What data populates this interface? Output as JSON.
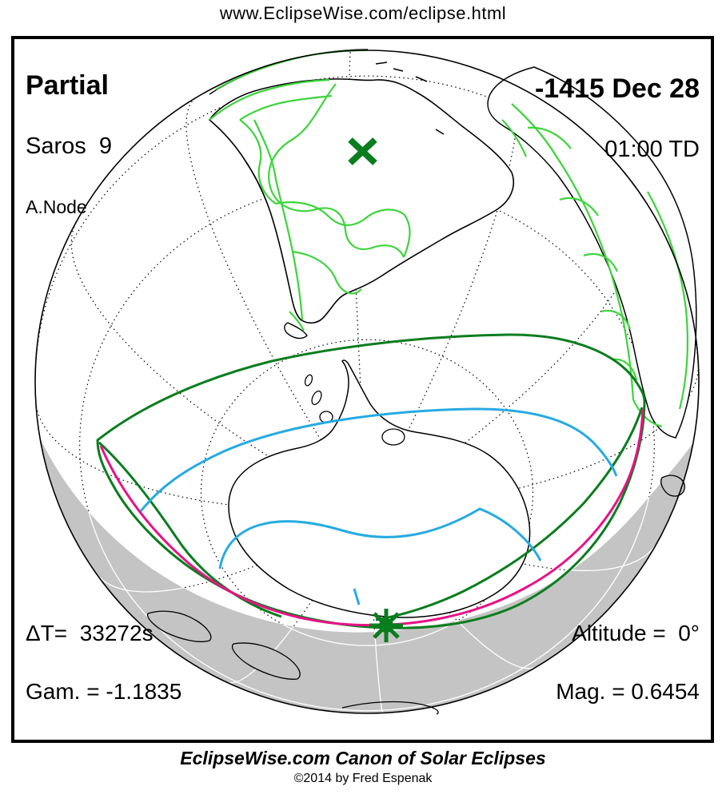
{
  "header": {
    "url": "www.EclipseWise.com/eclipse.html"
  },
  "map_panel": {
    "eclipse_type": "Partial",
    "saros": "Saros  9",
    "node": "A.Node",
    "date": "-1415 Dec 28",
    "time": "01:00 TD",
    "delta_t": "ΔT=  33272s",
    "gamma": "Gam. = -1.1835",
    "altitude": "Altitude =  0°",
    "magnitude": "Mag. = 0.6454"
  },
  "footer": {
    "title": "EclipseWise.com Canon of Solar Eclipses",
    "copyright": "©2014 by Fred Espenak"
  },
  "map": {
    "markers": [
      {
        "name": "sub-solar-point",
        "glyph": "x-mark"
      },
      {
        "name": "greatest-eclipse-point",
        "glyph": "asterisk"
      }
    ],
    "colors": {
      "eclipse_green": "#0a7d1e",
      "border_green": "#3cd43c",
      "magenta": "#e81286",
      "cyan": "#25aae1",
      "night_gray": "#c4c4c4",
      "coast_black": "#000000",
      "ocean_white": "#ffffff",
      "graticule_white": "#ffffff"
    }
  }
}
